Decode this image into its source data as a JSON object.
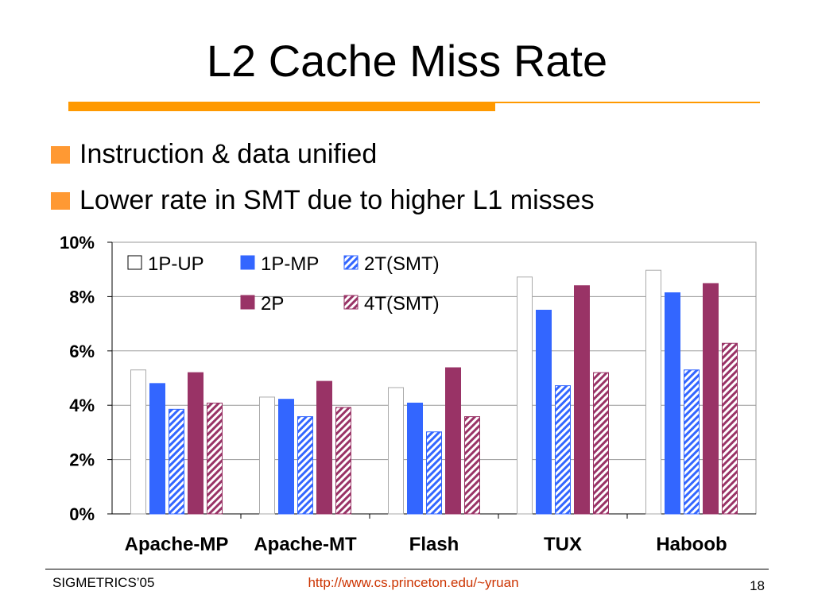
{
  "slide": {
    "title": "L2 Cache Miss Rate",
    "bullets": [
      "Instruction & data unified",
      "Lower rate in SMT due to higher L1 misses"
    ],
    "footer_left": "SIGMETRICS’05",
    "footer_center": "http://www.cs.princeton.edu/~yruan",
    "page_number": "18",
    "accent_color": "#ff9900",
    "bullet_color": "#ff9933",
    "link_color": "#cc3300"
  },
  "chart_data": {
    "type": "bar",
    "categories": [
      "Apache-MP",
      "Apache-MT",
      "Flash",
      "TUX",
      "Haboob"
    ],
    "y_tick_labels": [
      "0%",
      "2%",
      "4%",
      "6%",
      "8%",
      "10%"
    ],
    "ylim": [
      0,
      10
    ],
    "grid": true,
    "legend_position": "top-left, inside plot",
    "series": [
      {
        "name": "1P-UP",
        "values": [
          5.3,
          4.3,
          4.65,
          8.72,
          8.97
        ],
        "color": "#ffffff",
        "pattern": "solid"
      },
      {
        "name": "1P-MP",
        "values": [
          4.8,
          4.22,
          4.08,
          7.5,
          8.14
        ],
        "color": "#3366ff",
        "pattern": "solid"
      },
      {
        "name": "2T(SMT)",
        "values": [
          3.85,
          3.58,
          3.02,
          4.72,
          5.3
        ],
        "color": "#3366ff",
        "pattern": "hatch"
      },
      {
        "name": "2P",
        "values": [
          5.2,
          4.88,
          5.38,
          8.4,
          8.48
        ],
        "color": "#993366",
        "pattern": "solid"
      },
      {
        "name": "4T(SMT)",
        "values": [
          4.08,
          3.92,
          3.58,
          5.2,
          6.28
        ],
        "color": "#993366",
        "pattern": "hatch"
      }
    ]
  }
}
